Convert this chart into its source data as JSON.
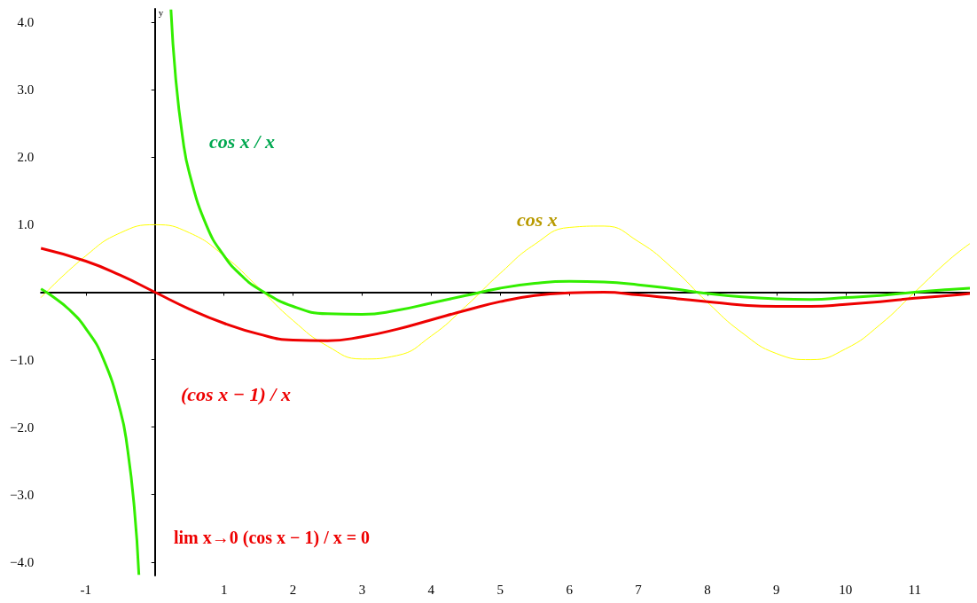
{
  "chart_data": {
    "type": "line",
    "ylabel": "y",
    "xlim": [
      -1.65,
      11.8
    ],
    "ylim": [
      -4.2,
      4.2
    ],
    "xticks": [
      -1,
      1,
      2,
      3,
      4,
      5,
      6,
      7,
      8,
      9,
      10,
      11
    ],
    "yticks": [
      {
        "value": -4,
        "label": "−4.0"
      },
      {
        "value": -3,
        "label": "−3.0"
      },
      {
        "value": -2,
        "label": "−2.0"
      },
      {
        "value": -1,
        "label": "−1.0"
      },
      {
        "value": 1,
        "label": "1.0"
      },
      {
        "value": 2,
        "label": "2.0"
      },
      {
        "value": 3,
        "label": "3.0"
      },
      {
        "value": 4,
        "label": "4.0"
      }
    ],
    "grid": false,
    "legend": false,
    "marker": "none",
    "line_style": "solid",
    "series": [
      {
        "name": "cos x",
        "color": "#ffff00",
        "x": [
          -1.65,
          -1,
          -0.5,
          0,
          0.5,
          1,
          1.5,
          2,
          2.5,
          3,
          3.5,
          4,
          4.5,
          5,
          5.5,
          6,
          6.5,
          7,
          7.5,
          8,
          8.5,
          9,
          9.5,
          10,
          10.5,
          11,
          11.5,
          11.8
        ],
        "values": [
          -0.08,
          0.54,
          0.88,
          1,
          0.88,
          0.54,
          0.07,
          -0.42,
          -0.8,
          -0.99,
          -0.94,
          -0.65,
          -0.21,
          0.28,
          0.71,
          0.96,
          0.98,
          0.75,
          0.35,
          -0.15,
          -0.6,
          -0.91,
          -1,
          -0.84,
          -0.48,
          0,
          0.48,
          0.72
        ]
      },
      {
        "name": "cos x / x",
        "color": "#33ee00",
        "x": [
          -1.65,
          -1.5,
          -1.25,
          -1,
          -0.75,
          -0.5,
          -0.4,
          -0.3,
          -0.232,
          0,
          0.232,
          0.3,
          0.4,
          0.5,
          0.75,
          1,
          1.25,
          1.5,
          2,
          2.5,
          3,
          3.5,
          4,
          4.5,
          5,
          5.5,
          6,
          6.5,
          7,
          7.5,
          8,
          8.5,
          9,
          9.5,
          10,
          10.5,
          11,
          11.5,
          11.8
        ],
        "values": [
          0.05,
          -0.05,
          -0.25,
          -0.54,
          -0.98,
          -1.76,
          -2.3,
          -3.18,
          -4.19,
          null,
          4.19,
          3.18,
          2.3,
          1.76,
          0.98,
          0.54,
          0.25,
          0.05,
          -0.21,
          -0.32,
          -0.33,
          -0.27,
          -0.16,
          -0.05,
          0.06,
          0.13,
          0.16,
          0.15,
          0.11,
          0.05,
          -0.02,
          -0.07,
          -0.1,
          -0.11,
          -0.08,
          -0.05,
          0,
          0.04,
          0.06
        ]
      },
      {
        "name": "(cos x − 1) / x",
        "color": "#ee0000",
        "x": [
          -1.65,
          -1,
          -0.5,
          0,
          0.5,
          1,
          1.5,
          2,
          2.5,
          3,
          3.5,
          4,
          4.5,
          5,
          5.5,
          6,
          6.5,
          7,
          7.5,
          8,
          8.5,
          9,
          9.5,
          10,
          10.5,
          11,
          11.5,
          11.8
        ],
        "values": [
          0.65,
          0.46,
          0.25,
          0,
          -0.25,
          -0.46,
          -0.62,
          -0.71,
          -0.72,
          -0.66,
          -0.55,
          -0.41,
          -0.27,
          -0.14,
          -0.05,
          -0.01,
          0,
          -0.04,
          -0.09,
          -0.14,
          -0.19,
          -0.21,
          -0.21,
          -0.18,
          -0.14,
          -0.09,
          -0.05,
          -0.02
        ]
      }
    ],
    "annotations": [
      "lim x→0 (cos x − 1) / x = 0"
    ]
  }
}
